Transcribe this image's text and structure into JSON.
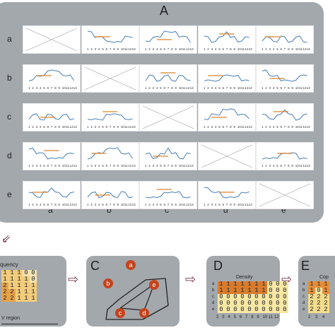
{
  "panel_a": {
    "title": "A",
    "rows": [
      "a",
      "b",
      "c",
      "d",
      "e"
    ],
    "cols": [
      "a",
      "b",
      "c",
      "d",
      "e"
    ],
    "x_ticks": [
      "1",
      "2",
      "3",
      "4",
      "5",
      "6",
      "7",
      "8",
      "9",
      "10",
      "11",
      "12",
      "13"
    ]
  },
  "panel_b": {
    "partial_title": "quency",
    "matrix": [
      [
        "1",
        "1",
        "1",
        "0",
        "0"
      ],
      [
        "1",
        "1",
        "1",
        "1",
        "0"
      ],
      [
        "2",
        "1",
        "1",
        "1",
        "1"
      ],
      [
        "2",
        "2",
        "1",
        "1",
        "1"
      ],
      [
        "2",
        "2",
        "1",
        "1",
        "1"
      ]
    ],
    "axis_label": "V region"
  },
  "panel_c": {
    "title": "C",
    "nodes": [
      "a",
      "b",
      "c",
      "d",
      "e"
    ]
  },
  "panel_d": {
    "title": "D",
    "subtitle": "Density",
    "row_labels": [
      "a",
      "b",
      "c",
      "d",
      "e"
    ],
    "matrix": [
      [
        "1",
        "1",
        "1",
        "1",
        "1",
        "1",
        "1",
        "0",
        "0",
        "0"
      ],
      [
        "1",
        "1",
        "1",
        "1",
        "1",
        "1",
        "1",
        "0",
        "0",
        "0"
      ],
      [
        "0",
        "0",
        "0",
        "0",
        "0",
        "0",
        "0",
        "0",
        "0",
        "0"
      ],
      [
        "0",
        "0",
        "0",
        "0",
        "0",
        "0",
        "0",
        "0",
        "0",
        "0"
      ],
      [
        "0",
        "0",
        "0",
        "0",
        "0",
        "0",
        "0",
        "0",
        "0",
        "0"
      ]
    ],
    "x_ticks": [
      "2",
      "3",
      "4",
      "5",
      "6",
      "7",
      "8",
      "9",
      "10",
      "11",
      "12"
    ]
  },
  "panel_e": {
    "title": "E",
    "partial_subtitle": "Cop",
    "row_labels": [
      "a",
      "b",
      "c",
      "d",
      "e"
    ],
    "matrix": [
      [
        "1",
        "1",
        "1"
      ],
      [
        "1",
        "0",
        "1"
      ],
      [
        "2",
        "2",
        "2"
      ],
      [
        "2",
        "2",
        "2"
      ],
      [
        "2",
        "2",
        "2"
      ]
    ],
    "x_ticks": [
      "2",
      "3",
      "4"
    ]
  }
}
